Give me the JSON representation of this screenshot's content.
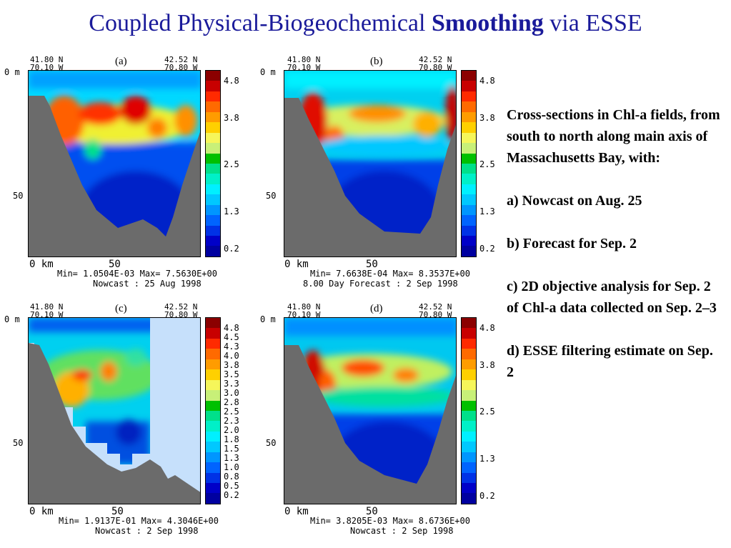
{
  "title": {
    "part1": "Coupled Physical-Biogeochemical ",
    "bold": "Smoothing",
    "part2": " via ESSE"
  },
  "description": [
    "Cross-sections in Chl-a fields, from south to north along main axis of Massachusetts Bay, with:",
    "a) Nowcast on Aug. 25",
    "b) Forecast for Sep. 2",
    "c) 2D objective analysis for Sep. 2 of Chl-a data collected on Sep. 2–3",
    "d) ESSE filtering estimate on Sep. 2"
  ],
  "panels": [
    {
      "label": "(a)",
      "lat_left": "41.80 N",
      "lon_left": "70.10 W",
      "lat_right": "42.52 N",
      "lon_right": "70.80 W",
      "y_top": "0 m",
      "y_mid": "50",
      "x_start": "0 km",
      "x_mid": "50",
      "stats": "Min= 1.0504E-03  Max= 7.5630E+00",
      "subtitle": "Nowcast : 25 Aug 1998",
      "ticks": [
        "4.8",
        "3.8",
        "2.5",
        "1.3",
        "0.2"
      ]
    },
    {
      "label": "(b)",
      "lat_left": "41.80 N",
      "lon_left": "70.10 W",
      "lat_right": "42.52 N",
      "lon_right": "70.80 W",
      "y_top": "0 m",
      "y_mid": "50",
      "x_start": "0 km",
      "x_mid": "50",
      "stats": "Min= 7.6638E-04  Max= 8.3537E+00",
      "subtitle": "8.00 Day Forecast :  2 Sep 1998",
      "ticks": [
        "4.8",
        "3.8",
        "2.5",
        "1.3",
        "0.2"
      ]
    },
    {
      "label": "(c)",
      "lat_left": "41.80 N",
      "lon_left": "70.10 W",
      "lat_right": "42.52 N",
      "lon_right": "70.80 W",
      "y_top": "0 m",
      "y_mid": "50",
      "x_start": "0 km",
      "x_mid": "50",
      "stats": "Min= 1.9137E-01  Max= 4.3046E+00",
      "subtitle": "Nowcast :  2 Sep 1998",
      "ticks": [
        "4.8",
        "4.5",
        "4.3",
        "4.0",
        "3.8",
        "3.5",
        "3.3",
        "3.0",
        "2.8",
        "2.5",
        "2.3",
        "2.0",
        "1.8",
        "1.5",
        "1.3",
        "1.0",
        "0.8",
        "0.5",
        "0.2"
      ]
    },
    {
      "label": "(d)",
      "lat_left": "41.80 N",
      "lon_left": "70.10 W",
      "lat_right": "42.52 N",
      "lon_right": "70.80 W",
      "y_top": "0 m",
      "y_mid": "50",
      "x_start": "0 km",
      "x_mid": "50",
      "stats": "Min= 3.8205E-03  Max= 8.6736E+00",
      "subtitle": "Nowcast :  2 Sep 1998",
      "ticks": [
        "4.8",
        "3.8",
        "2.5",
        "1.3",
        "0.2"
      ]
    }
  ],
  "colors": {
    "title": "#1a1a9a",
    "seafloor": "#6b6b6b",
    "no_data": "#c6e0fb",
    "colorbar": [
      "#8b0000",
      "#c80000",
      "#ff2a00",
      "#ff6a00",
      "#ff9c00",
      "#ffd000",
      "#f6f65a",
      "#c8f078",
      "#00c000",
      "#00e08a",
      "#00f0c8",
      "#00f0ff",
      "#00c8ff",
      "#0096ff",
      "#0064ff",
      "#0032e6",
      "#0000c8",
      "#0000a0"
    ]
  }
}
